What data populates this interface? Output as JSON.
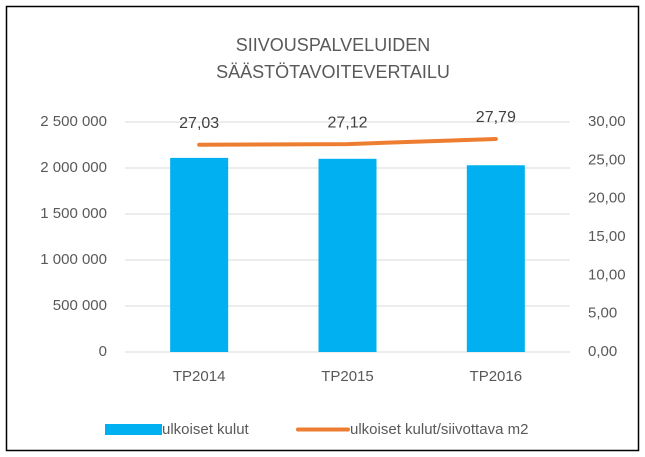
{
  "chart_data": {
    "type": "bar",
    "title": [
      "SIIVOUSPALVELUIDEN",
      "SÄÄSTÖTAVOITEVERTAILU"
    ],
    "categories": [
      "TP2014",
      "TP2015",
      "TP2016"
    ],
    "series": [
      {
        "name": "ulkoiset kulut",
        "type": "bar",
        "color": "#00b0f0",
        "values": [
          2110000,
          2100000,
          2030000
        ]
      },
      {
        "name": "ulkoiset kulut/siivottava m2",
        "type": "line",
        "axis": "y2",
        "color": "#ed7d31",
        "values": [
          27.03,
          27.12,
          27.79
        ],
        "value_labels": [
          "27,03",
          "27,12",
          "27,79"
        ]
      }
    ],
    "ylim": [
      0,
      2500000
    ],
    "yticks": [
      0,
      {
        "value": 500000,
        "label": "500 000"
      },
      {
        "value": 1000000,
        "label": "1 000 000"
      },
      {
        "value": 1500000,
        "label": "1 500 000"
      },
      {
        "value": 2000000,
        "label": "2 000 000"
      },
      {
        "value": 2500000,
        "label": "2 500 000"
      }
    ],
    "y2lim": [
      0,
      30
    ],
    "y2ticks": [
      {
        "value": 0,
        "label": "0,00"
      },
      {
        "value": 5,
        "label": "5,00"
      },
      {
        "value": 10,
        "label": "10,00"
      },
      {
        "value": 15,
        "label": "15,00"
      },
      {
        "value": 20,
        "label": "20,00"
      },
      {
        "value": 25,
        "label": "25,00"
      },
      {
        "value": 30,
        "label": "30,00"
      }
    ],
    "grid": true,
    "legend": "bottom"
  }
}
